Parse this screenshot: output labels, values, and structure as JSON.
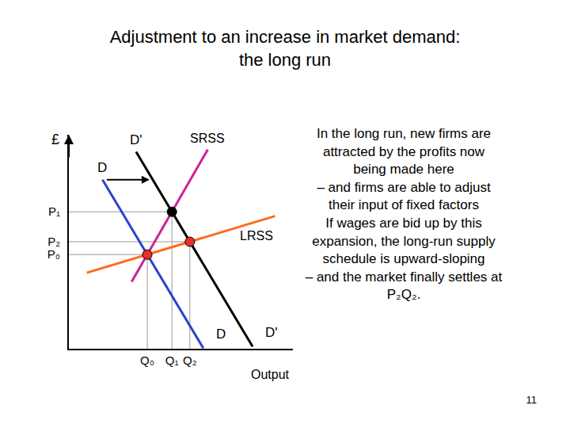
{
  "chart_data": {
    "type": "line",
    "title": "Adjustment to an increase in market demand: the long run",
    "xlabel": "Output",
    "ylabel": "£",
    "xlim": [
      0,
      100
    ],
    "ylim": [
      0,
      100
    ],
    "xticks": [
      {
        "value": 35,
        "label": "Q₀"
      },
      {
        "value": 46,
        "label": "Q₁"
      },
      {
        "value": 54,
        "label": "Q₂"
      }
    ],
    "yticks": [
      {
        "value": 64,
        "label": "P₁"
      },
      {
        "value": 50,
        "label": "P₂"
      },
      {
        "value": 44,
        "label": "P₀"
      }
    ],
    "grid": false,
    "series": [
      {
        "name": "D",
        "color": "#2b45c8",
        "x": [
          15,
          60
        ],
        "values": [
          79,
          0.25
        ]
      },
      {
        "name": "D'",
        "color": "#000000",
        "x": [
          30,
          82
        ],
        "values": [
          92,
          1
        ]
      },
      {
        "name": "SRSS",
        "color": "#d0209a",
        "x": [
          28,
          62
        ],
        "values": [
          31.3,
          93.1
        ]
      },
      {
        "name": "LRSS",
        "color": "#ff6a1a",
        "x": [
          8,
          92
        ],
        "values": [
          35.5,
          62
        ]
      }
    ],
    "points": [
      {
        "x": 35,
        "y": 44,
        "color": "#e8302a"
      },
      {
        "x": 46,
        "y": 64,
        "color": "#000000"
      },
      {
        "x": 54,
        "y": 50,
        "color": "#e8302a"
      }
    ],
    "annotations": [
      "In the long run, new firms are attracted by the profits now being made here",
      "– and firms are able to adjust their input of fixed factors",
      "If wages are bid up by this expansion, the long-run supply schedule is upward-sloping",
      "– and the market finally settles at P₂Q₂."
    ]
  },
  "page_number": 11
}
